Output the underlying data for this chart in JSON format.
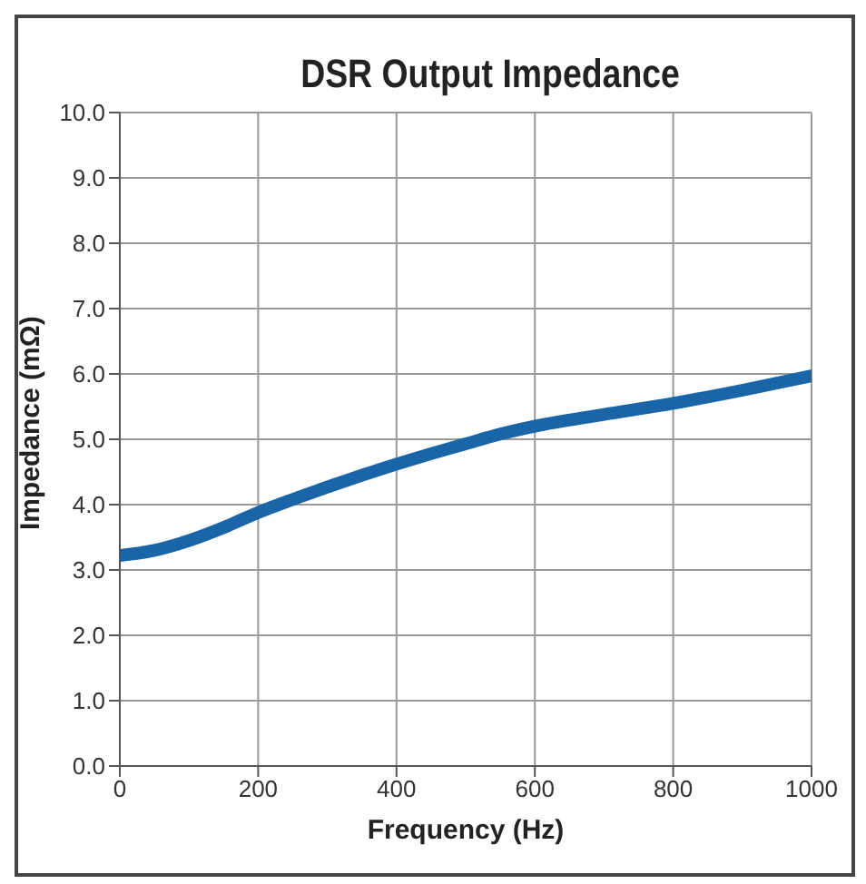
{
  "chart_data": {
    "type": "line",
    "title": "DSR Output Impedance",
    "xlabel": "Frequency (Hz)",
    "ylabel": "Impedance (mΩ)",
    "x": [
      0,
      50,
      100,
      150,
      200,
      250,
      300,
      350,
      400,
      450,
      500,
      550,
      600,
      700,
      800,
      900,
      1000
    ],
    "series": [
      {
        "color": "#1a64a8",
        "values": [
          3.22,
          3.3,
          3.45,
          3.65,
          3.88,
          4.08,
          4.27,
          4.45,
          4.62,
          4.78,
          4.93,
          5.08,
          5.2,
          5.38,
          5.55,
          5.75,
          5.97
        ]
      }
    ],
    "xlim": [
      0,
      1000
    ],
    "xticks": [
      0,
      200,
      400,
      600,
      800,
      1000
    ],
    "ylim": [
      0,
      10
    ],
    "yticks": [
      {
        "value": 0,
        "label": "0.0"
      },
      {
        "value": 1,
        "label": "1.0"
      },
      {
        "value": 2,
        "label": "2.0"
      },
      {
        "value": 3,
        "label": "3.0"
      },
      {
        "value": 4,
        "label": "4.0"
      },
      {
        "value": 5,
        "label": "5.0"
      },
      {
        "value": 6,
        "label": "6.0"
      },
      {
        "value": 7,
        "label": "7.0"
      },
      {
        "value": 8,
        "label": "8.0"
      },
      {
        "value": 9,
        "label": "9.0"
      },
      {
        "value": 10,
        "label": "10.0"
      }
    ],
    "grid": true,
    "legend": false,
    "marker": "none",
    "line_style": "solid"
  }
}
